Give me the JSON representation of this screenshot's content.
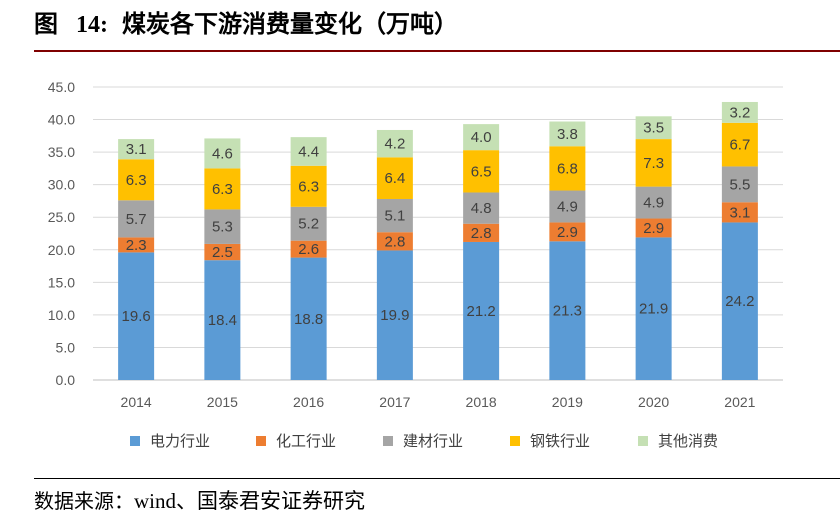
{
  "figure": {
    "label": "图",
    "number": "14:",
    "title": "煤炭各下游消费量变化（万吨）"
  },
  "source": {
    "prefix": "数据来源：",
    "text": "wind、国泰君安证券研究"
  },
  "chart_data": {
    "type": "bar",
    "stacked": true,
    "categories": [
      "2014",
      "2015",
      "2016",
      "2017",
      "2018",
      "2019",
      "2020",
      "2021"
    ],
    "ylim": [
      0,
      45
    ],
    "yticks": [
      "0.0",
      "5.0",
      "10.0",
      "15.0",
      "20.0",
      "25.0",
      "30.0",
      "35.0",
      "40.0",
      "45.0"
    ],
    "grid": true,
    "legend_position": "bottom",
    "series": [
      {
        "name": "电力行业",
        "color": "#5b9bd5",
        "values": [
          19.6,
          18.4,
          18.8,
          19.9,
          21.2,
          21.3,
          21.9,
          24.2
        ]
      },
      {
        "name": "化工行业",
        "color": "#ed7d31",
        "values": [
          2.3,
          2.5,
          2.6,
          2.8,
          2.8,
          2.9,
          2.9,
          3.1
        ]
      },
      {
        "name": "建材行业",
        "color": "#a5a5a5",
        "values": [
          5.7,
          5.3,
          5.2,
          5.1,
          4.8,
          4.9,
          4.9,
          5.5
        ]
      },
      {
        "name": "钢铁行业",
        "color": "#ffc000",
        "values": [
          6.3,
          6.3,
          6.3,
          6.4,
          6.5,
          6.8,
          7.3,
          6.7
        ]
      },
      {
        "name": "其他消费",
        "color": "#c5e0b4",
        "values": [
          3.1,
          4.6,
          4.4,
          4.2,
          4.0,
          3.8,
          3.5,
          3.2
        ]
      }
    ]
  }
}
